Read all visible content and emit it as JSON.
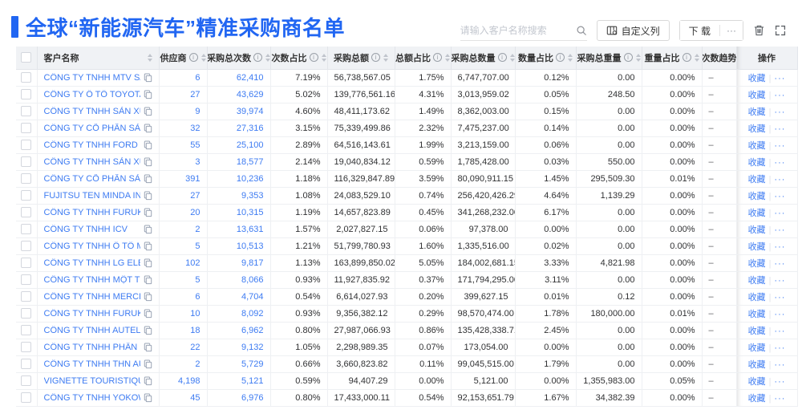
{
  "page": {
    "title": "全球“新能源汽车”精准采购商名单"
  },
  "colors": {
    "accent": "#2166f2",
    "link": "#3d7bf2",
    "header_bg": "#f0f2f5"
  },
  "toolbar": {
    "search_placeholder": "请输入客户名称搜索",
    "customize_columns_label": "自定义列",
    "download_label": "下 载",
    "more_label": "···"
  },
  "table": {
    "columns": [
      {
        "key": "checkbox",
        "label": "",
        "info": false,
        "sort": false
      },
      {
        "key": "name",
        "label": "客户名称",
        "info": false,
        "sort": true
      },
      {
        "key": "supplier",
        "label": "供应商",
        "info": true,
        "sort": true
      },
      {
        "key": "times",
        "label": "采购总次数",
        "info": true,
        "sort": true
      },
      {
        "key": "times_pct",
        "label": "次数占比",
        "info": true,
        "sort": true
      },
      {
        "key": "amount",
        "label": "采购总额",
        "info": true,
        "sort": true
      },
      {
        "key": "amount_pct",
        "label": "总额占比",
        "info": true,
        "sort": true
      },
      {
        "key": "qty",
        "label": "采购总数量",
        "info": true,
        "sort": true
      },
      {
        "key": "qty_pct",
        "label": "数量占比",
        "info": true,
        "sort": true
      },
      {
        "key": "weight",
        "label": "采购总重量",
        "info": true,
        "sort": true
      },
      {
        "key": "weight_pct",
        "label": "重量占比",
        "info": true,
        "sort": true
      },
      {
        "key": "trend",
        "label": "次数趋势",
        "info": false,
        "sort": false
      },
      {
        "key": "actions",
        "label": "操作",
        "info": false,
        "sort": false
      }
    ],
    "action_labels": {
      "favorite": "收藏",
      "more": "···"
    },
    "trend_placeholder": "–",
    "rows": [
      {
        "name": "CÔNG TY TNHH MTV SẢN XUẤ...",
        "supplier": "6",
        "times": "62,410",
        "times_pct": "7.19%",
        "amount": "56,738,567.05",
        "amount_pct": "1.75%",
        "qty": "6,747,707.00",
        "qty_pct": "0.12%",
        "weight": "0.00",
        "weight_pct": "0.00%"
      },
      {
        "name": "CÔNG TY Ô TÔ TOYOTA VIỆT ...",
        "supplier": "27",
        "times": "43,629",
        "times_pct": "5.02%",
        "amount": "139,776,561.16",
        "amount_pct": "4.31%",
        "qty": "3,013,959.02",
        "qty_pct": "0.05%",
        "weight": "248.50",
        "weight_pct": "0.00%"
      },
      {
        "name": "CÔNG TY TNHH SẢN XUẤT VÀ ...",
        "supplier": "9",
        "times": "39,974",
        "times_pct": "4.60%",
        "amount": "48,411,173.62",
        "amount_pct": "1.49%",
        "qty": "8,362,003.00",
        "qty_pct": "0.15%",
        "weight": "0.00",
        "weight_pct": "0.00%"
      },
      {
        "name": "CÔNG TY CỔ PHẦN SẢN XUẤT...",
        "supplier": "32",
        "times": "27,316",
        "times_pct": "3.15%",
        "amount": "75,339,499.86",
        "amount_pct": "2.32%",
        "qty": "7,475,237.00",
        "qty_pct": "0.14%",
        "weight": "0.00",
        "weight_pct": "0.00%"
      },
      {
        "name": "CÔNG TY TNHH FORD VIỆT NAM",
        "supplier": "55",
        "times": "25,100",
        "times_pct": "2.89%",
        "amount": "64,516,143.61",
        "amount_pct": "1.99%",
        "qty": "3,213,159.00",
        "qty_pct": "0.06%",
        "weight": "0.00",
        "weight_pct": "0.00%"
      },
      {
        "name": "CÔNG TY TNHH SẢN XUẤT VÀ ...",
        "supplier": "3",
        "times": "18,577",
        "times_pct": "2.14%",
        "amount": "19,040,834.12",
        "amount_pct": "0.59%",
        "qty": "1,785,428.00",
        "qty_pct": "0.03%",
        "weight": "550.00",
        "weight_pct": "0.00%"
      },
      {
        "name": "CÔNG TY CỔ PHẦN SẢN XUẤT...",
        "supplier": "391",
        "times": "10,236",
        "times_pct": "1.18%",
        "amount": "116,329,847.89",
        "amount_pct": "3.59%",
        "qty": "80,090,911.15",
        "qty_pct": "1.45%",
        "weight": "295,509.30",
        "weight_pct": "0.01%"
      },
      {
        "name": "FUJITSU TEN MINDA INDIA PVT...",
        "supplier": "27",
        "times": "9,353",
        "times_pct": "1.08%",
        "amount": "24,083,529.10",
        "amount_pct": "0.74%",
        "qty": "256,420,426.29",
        "qty_pct": "4.64%",
        "weight": "1,139.29",
        "weight_pct": "0.00%"
      },
      {
        "name": "CÔNG TY TNHH FURUKAWA A...",
        "supplier": "20",
        "times": "10,315",
        "times_pct": "1.19%",
        "amount": "14,657,823.89",
        "amount_pct": "0.45%",
        "qty": "341,268,232.00",
        "qty_pct": "6.17%",
        "weight": "0.00",
        "weight_pct": "0.00%"
      },
      {
        "name": "CÔNG TY TNHH ICV",
        "supplier": "2",
        "times": "13,631",
        "times_pct": "1.57%",
        "amount": "2,027,827.15",
        "amount_pct": "0.06%",
        "qty": "97,378.00",
        "qty_pct": "0.00%",
        "weight": "0.00",
        "weight_pct": "0.00%"
      },
      {
        "name": "CÔNG TY TNHH Ô TÔ MITSUBI...",
        "supplier": "5",
        "times": "10,513",
        "times_pct": "1.21%",
        "amount": "51,799,780.93",
        "amount_pct": "1.60%",
        "qty": "1,335,516.00",
        "qty_pct": "0.02%",
        "weight": "0.00",
        "weight_pct": "0.00%"
      },
      {
        "name": "CÔNG TY TNHH LG ELECTRON...",
        "supplier": "102",
        "times": "9,817",
        "times_pct": "1.13%",
        "amount": "163,899,850.02",
        "amount_pct": "5.05%",
        "qty": "184,002,681.15",
        "qty_pct": "3.33%",
        "weight": "4,821.98",
        "weight_pct": "0.00%"
      },
      {
        "name": "CÔNG TY TNHH MỘT THÀNH V...",
        "supplier": "5",
        "times": "8,066",
        "times_pct": "0.93%",
        "amount": "11,927,835.92",
        "amount_pct": "0.37%",
        "qty": "171,794,295.00",
        "qty_pct": "3.11%",
        "weight": "0.00",
        "weight_pct": "0.00%"
      },
      {
        "name": "CÔNG TY TNHH MERCEDES-B...",
        "supplier": "6",
        "times": "4,704",
        "times_pct": "0.54%",
        "amount": "6,614,027.93",
        "amount_pct": "0.20%",
        "qty": "399,627.15",
        "qty_pct": "0.01%",
        "weight": "0.12",
        "weight_pct": "0.00%"
      },
      {
        "name": "CÔNG TY TNHH FURUKAWA A...",
        "supplier": "10",
        "times": "8,092",
        "times_pct": "0.93%",
        "amount": "9,356,382.12",
        "amount_pct": "0.29%",
        "qty": "98,570,474.00",
        "qty_pct": "1.78%",
        "weight": "180,000.00",
        "weight_pct": "0.01%"
      },
      {
        "name": "CÔNG TY TNHH AUTEL VIỆT N...",
        "supplier": "18",
        "times": "6,962",
        "times_pct": "0.80%",
        "amount": "27,987,066.93",
        "amount_pct": "0.86%",
        "qty": "135,428,338.71",
        "qty_pct": "2.45%",
        "weight": "0.00",
        "weight_pct": "0.00%"
      },
      {
        "name": "CÔNG TY TNHH PHÂN PHỐI T...",
        "supplier": "22",
        "times": "9,132",
        "times_pct": "1.05%",
        "amount": "2,298,989.35",
        "amount_pct": "0.07%",
        "qty": "173,054.00",
        "qty_pct": "0.00%",
        "weight": "0.00",
        "weight_pct": "0.00%"
      },
      {
        "name": "CÔNG TY TNHH THN AUTOPAR...",
        "supplier": "2",
        "times": "5,729",
        "times_pct": "0.66%",
        "amount": "3,660,823.82",
        "amount_pct": "0.11%",
        "qty": "99,045,515.00",
        "qty_pct": "1.79%",
        "weight": "0.00",
        "weight_pct": "0.00%"
      },
      {
        "name": "VIGNETTE TOURISTIQUE G UNI...",
        "supplier": "4,198",
        "times": "5,121",
        "times_pct": "0.59%",
        "amount": "94,407.29",
        "amount_pct": "0.00%",
        "qty": "5,121.00",
        "qty_pct": "0.00%",
        "weight": "1,355,983.00",
        "weight_pct": "0.05%"
      },
      {
        "name": "CÔNG TY TNHH YOKOWO VIỆT...",
        "supplier": "45",
        "times": "6,976",
        "times_pct": "0.80%",
        "amount": "17,433,000.11",
        "amount_pct": "0.54%",
        "qty": "92,153,651.79",
        "qty_pct": "1.67%",
        "weight": "34,382.39",
        "weight_pct": "0.00%"
      }
    ]
  }
}
